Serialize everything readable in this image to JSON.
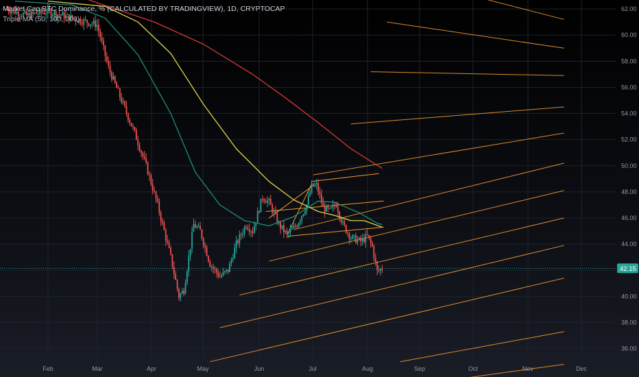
{
  "legend": {
    "title": "Market Cap BTC Dominance, % (CALCULATED BY TRADINGVIEW), 1D, CRYPTOCAP",
    "indicator": "Triple MA (50, 100, 200)"
  },
  "colors": {
    "up": "#26a69a",
    "down": "#ef5350",
    "ma50": "#1f8f79",
    "ma100": "#e5d64b",
    "ma200": "#d83a3a",
    "fib": "#f59a2f",
    "tag": "#26a69a"
  },
  "chart_data": {
    "type": "candlestick",
    "x_labels": [
      "Feb",
      "Mar",
      "Apr",
      "May",
      "Jun",
      "Jul",
      "Aug",
      "Sep",
      "Oct",
      "Nov",
      "Dec"
    ],
    "y_ticks": [
      "36.00",
      "38.00",
      "40.00",
      "42.00",
      "44.00",
      "46.00",
      "48.00",
      "50.00",
      "52.00",
      "54.00",
      "56.00",
      "58.00",
      "60.00",
      "62.00"
    ],
    "ylim": [
      35.0,
      62.6
    ],
    "xlim_days": [
      0,
      340
    ],
    "last_price": "42.15",
    "last_value": 42.15,
    "anchors": [
      {
        "day": 0,
        "value": 62.0
      },
      {
        "day": 12,
        "value": 61.5
      },
      {
        "day": 25,
        "value": 61.8
      },
      {
        "day": 40,
        "value": 61.3
      },
      {
        "day": 55,
        "value": 60.8
      },
      {
        "day": 62,
        "value": 57.5
      },
      {
        "day": 70,
        "value": 55.0
      },
      {
        "day": 78,
        "value": 52.5
      },
      {
        "day": 85,
        "value": 50.0
      },
      {
        "day": 92,
        "value": 47.0
      },
      {
        "day": 100,
        "value": 43.0
      },
      {
        "day": 105,
        "value": 40.0
      },
      {
        "day": 108,
        "value": 40.5
      },
      {
        "day": 114,
        "value": 45.5
      },
      {
        "day": 118,
        "value": 45.0
      },
      {
        "day": 124,
        "value": 42.5
      },
      {
        "day": 130,
        "value": 41.5
      },
      {
        "day": 135,
        "value": 42.0
      },
      {
        "day": 140,
        "value": 44.0
      },
      {
        "day": 146,
        "value": 45.5
      },
      {
        "day": 150,
        "value": 45.0
      },
      {
        "day": 156,
        "value": 47.6
      },
      {
        "day": 160,
        "value": 47.2
      },
      {
        "day": 166,
        "value": 45.5
      },
      {
        "day": 171,
        "value": 44.7
      },
      {
        "day": 177,
        "value": 45.5
      },
      {
        "day": 183,
        "value": 47.0
      },
      {
        "day": 186,
        "value": 48.4
      },
      {
        "day": 189,
        "value": 48.5
      },
      {
        "day": 193,
        "value": 46.8
      },
      {
        "day": 197,
        "value": 46.5
      },
      {
        "day": 201,
        "value": 47.1
      },
      {
        "day": 205,
        "value": 45.5
      },
      {
        "day": 210,
        "value": 44.5
      },
      {
        "day": 216,
        "value": 44.2
      },
      {
        "day": 220,
        "value": 44.6
      },
      {
        "day": 223,
        "value": 43.8
      },
      {
        "day": 226,
        "value": 41.9
      },
      {
        "day": 229,
        "value": 42.15
      }
    ],
    "ma50": [
      {
        "day": 5,
        "value": 62.6
      },
      {
        "day": 40,
        "value": 62.3
      },
      {
        "day": 60,
        "value": 61.3
      },
      {
        "day": 80,
        "value": 58.5
      },
      {
        "day": 100,
        "value": 54.0
      },
      {
        "day": 115,
        "value": 49.5
      },
      {
        "day": 130,
        "value": 47.0
      },
      {
        "day": 145,
        "value": 45.8
      },
      {
        "day": 160,
        "value": 45.4
      },
      {
        "day": 175,
        "value": 46.1
      },
      {
        "day": 190,
        "value": 47.3
      },
      {
        "day": 200,
        "value": 47.2
      },
      {
        "day": 215,
        "value": 46.4
      },
      {
        "day": 226,
        "value": 45.6
      },
      {
        "day": 229,
        "value": 45.5
      }
    ],
    "ma100": [
      {
        "day": 25,
        "value": 62.6
      },
      {
        "day": 60,
        "value": 62.2
      },
      {
        "day": 80,
        "value": 61.0
      },
      {
        "day": 100,
        "value": 58.6
      },
      {
        "day": 120,
        "value": 54.7
      },
      {
        "day": 140,
        "value": 51.3
      },
      {
        "day": 160,
        "value": 48.8
      },
      {
        "day": 175,
        "value": 47.4
      },
      {
        "day": 190,
        "value": 46.5
      },
      {
        "day": 200,
        "value": 46.2
      },
      {
        "day": 210,
        "value": 45.8
      },
      {
        "day": 218,
        "value": 45.8
      },
      {
        "day": 229,
        "value": 45.3
      }
    ],
    "ma200": [
      {
        "day": 45,
        "value": 62.9
      },
      {
        "day": 90,
        "value": 61.0
      },
      {
        "day": 120,
        "value": 59.3
      },
      {
        "day": 150,
        "value": 57.0
      },
      {
        "day": 170,
        "value": 55.2
      },
      {
        "day": 190,
        "value": 53.3
      },
      {
        "day": 210,
        "value": 51.3
      },
      {
        "day": 229,
        "value": 49.8
      }
    ],
    "fib_lines": [
      {
        "d1": 124,
        "v1": 35.0,
        "d2": 340,
        "v2": 41.4
      },
      {
        "d1": 130,
        "v1": 37.6,
        "d2": 340,
        "v2": 43.9
      },
      {
        "d1": 142,
        "v1": 40.1,
        "d2": 340,
        "v2": 46.0
      },
      {
        "d1": 160,
        "v1": 42.7,
        "d2": 340,
        "v2": 48.1
      },
      {
        "d1": 175,
        "v1": 45.1,
        "d2": 340,
        "v2": 50.2
      },
      {
        "d1": 187,
        "v1": 49.3,
        "d2": 340,
        "v2": 52.5
      },
      {
        "d1": 210,
        "v1": 53.2,
        "d2": 340,
        "v2": 54.5
      },
      {
        "d1": 222,
        "v1": 57.2,
        "d2": 340,
        "v2": 56.9
      },
      {
        "d1": 232,
        "v1": 61.0,
        "d2": 340,
        "v2": 59.0
      },
      {
        "d1": 244,
        "v1": 64.3,
        "d2": 340,
        "v2": 61.2
      },
      {
        "d1": 254,
        "v1": 67.5,
        "d2": 340,
        "v2": 63.4
      }
    ],
    "fib_low_lines": [
      {
        "d1": 240,
        "v1": 35.0,
        "d2": 340,
        "v2": 37.3
      },
      {
        "d1": 265,
        "v1": 33.5,
        "d2": 340,
        "v2": 34.8
      }
    ],
    "channel_lines": [
      {
        "d1": 158,
        "v1": 46.5,
        "d2": 230,
        "v2": 47.3
      },
      {
        "d1": 160,
        "v1": 46.0,
        "d2": 186,
        "v2": 48.4
      },
      {
        "d1": 171,
        "v1": 44.7,
        "d2": 186,
        "v2": 48.6
      },
      {
        "d1": 171,
        "v1": 44.6,
        "d2": 230,
        "v2": 45.3
      },
      {
        "d1": 186,
        "v1": 48.8,
        "d2": 227,
        "v2": 49.4
      }
    ]
  }
}
